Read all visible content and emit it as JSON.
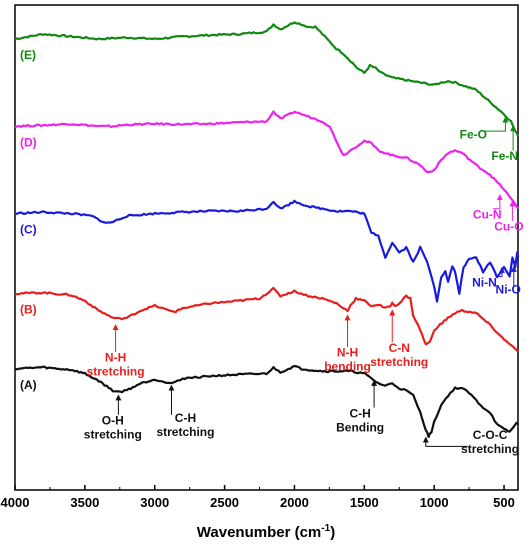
{
  "chart_data": {
    "type": "line",
    "xlabel": "Wavenumber (cm",
    "xlabel_sup": "-1",
    "xlabel_end": ")",
    "ylabel": "",
    "xlim": [
      4000,
      400
    ],
    "x_reversed": true,
    "x_ticks": [
      4000,
      3500,
      3000,
      2500,
      2000,
      1500,
      1000,
      500
    ],
    "x_tick_labels": [
      "4000",
      "3500",
      "3000",
      "2500",
      "2000",
      "1500",
      "1000",
      "500"
    ],
    "ylim": [
      0,
      100
    ],
    "grid": false,
    "series": [
      {
        "name": "(E)",
        "color": "#118811",
        "points": [
          [
            4000,
            93
          ],
          [
            3800,
            94
          ],
          [
            3600,
            93.5
          ],
          [
            3400,
            93
          ],
          [
            3200,
            93.3
          ],
          [
            3000,
            93
          ],
          [
            2800,
            93.5
          ],
          [
            2600,
            93.8
          ],
          [
            2400,
            94
          ],
          [
            2200,
            94.5
          ],
          [
            2150,
            96
          ],
          [
            2100,
            95
          ],
          [
            2000,
            96.5
          ],
          [
            1950,
            96
          ],
          [
            1900,
            95.5
          ],
          [
            1850,
            95.5
          ],
          [
            1800,
            94
          ],
          [
            1750,
            92.5
          ],
          [
            1700,
            91
          ],
          [
            1650,
            90
          ],
          [
            1600,
            88.5
          ],
          [
            1550,
            87
          ],
          [
            1500,
            86
          ],
          [
            1460,
            87.5
          ],
          [
            1420,
            87
          ],
          [
            1380,
            86
          ],
          [
            1300,
            85
          ],
          [
            1200,
            84.5
          ],
          [
            1100,
            84
          ],
          [
            1000,
            83.5
          ],
          [
            950,
            84
          ],
          [
            900,
            84.3
          ],
          [
            850,
            84
          ],
          [
            800,
            83.5
          ],
          [
            700,
            82.5
          ],
          [
            600,
            80
          ],
          [
            500,
            77.5
          ],
          [
            450,
            76
          ],
          [
            420,
            74
          ],
          [
            400,
            73
          ]
        ]
      },
      {
        "name": "(D)",
        "color": "#ee22ee",
        "points": [
          [
            4000,
            75
          ],
          [
            3800,
            75.2
          ],
          [
            3600,
            75.5
          ],
          [
            3400,
            75
          ],
          [
            3300,
            75
          ],
          [
            3200,
            75.3
          ],
          [
            3000,
            75.5
          ],
          [
            2800,
            75.4
          ],
          [
            2600,
            75.5
          ],
          [
            2400,
            75.8
          ],
          [
            2200,
            76
          ],
          [
            2150,
            78
          ],
          [
            2100,
            76.5
          ],
          [
            2000,
            78
          ],
          [
            1950,
            77.5
          ],
          [
            1900,
            77
          ],
          [
            1850,
            76.5
          ],
          [
            1800,
            76
          ],
          [
            1750,
            75
          ],
          [
            1700,
            72
          ],
          [
            1650,
            69
          ],
          [
            1600,
            70
          ],
          [
            1550,
            71
          ],
          [
            1500,
            72
          ],
          [
            1450,
            71.5
          ],
          [
            1400,
            70
          ],
          [
            1300,
            69
          ],
          [
            1200,
            68.5
          ],
          [
            1100,
            67
          ],
          [
            1050,
            65.5
          ],
          [
            1000,
            66
          ],
          [
            950,
            68
          ],
          [
            900,
            69.5
          ],
          [
            850,
            70
          ],
          [
            800,
            69.5
          ],
          [
            700,
            67
          ],
          [
            600,
            65
          ],
          [
            500,
            62
          ],
          [
            450,
            60
          ],
          [
            420,
            59
          ],
          [
            400,
            58
          ]
        ]
      },
      {
        "name": "(C)",
        "color": "#1a1adc",
        "points": [
          [
            4000,
            57
          ],
          [
            3800,
            57.3
          ],
          [
            3600,
            57
          ],
          [
            3450,
            56.5
          ],
          [
            3350,
            55
          ],
          [
            3300,
            55.3
          ],
          [
            3200,
            56.5
          ],
          [
            3000,
            57
          ],
          [
            2800,
            57.3
          ],
          [
            2600,
            57.5
          ],
          [
            2400,
            57.5
          ],
          [
            2200,
            58
          ],
          [
            2150,
            59.5
          ],
          [
            2100,
            58
          ],
          [
            2000,
            59.5
          ],
          [
            1950,
            59
          ],
          [
            1900,
            58.5
          ],
          [
            1800,
            58
          ],
          [
            1700,
            57.5
          ],
          [
            1600,
            57.5
          ],
          [
            1500,
            57
          ],
          [
            1450,
            53
          ],
          [
            1400,
            52.5
          ],
          [
            1350,
            48
          ],
          [
            1300,
            51
          ],
          [
            1250,
            49
          ],
          [
            1200,
            50
          ],
          [
            1150,
            47
          ],
          [
            1100,
            50
          ],
          [
            1050,
            47
          ],
          [
            1000,
            42
          ],
          [
            980,
            39
          ],
          [
            950,
            44
          ],
          [
            920,
            45
          ],
          [
            900,
            43
          ],
          [
            870,
            46
          ],
          [
            850,
            45
          ],
          [
            820,
            40.5
          ],
          [
            790,
            46
          ],
          [
            750,
            47.5
          ],
          [
            700,
            48
          ],
          [
            650,
            45
          ],
          [
            600,
            47
          ],
          [
            550,
            44
          ],
          [
            500,
            46
          ],
          [
            460,
            44
          ],
          [
            440,
            48
          ],
          [
            420,
            46
          ],
          [
            405,
            49
          ],
          [
            400,
            48
          ]
        ]
      },
      {
        "name": "(B)",
        "color": "#e81e1e",
        "points": [
          [
            4000,
            40.5
          ],
          [
            3800,
            40.7
          ],
          [
            3600,
            40.2
          ],
          [
            3500,
            39
          ],
          [
            3400,
            37
          ],
          [
            3300,
            35.5
          ],
          [
            3250,
            35.3
          ],
          [
            3200,
            35.5
          ],
          [
            3100,
            37
          ],
          [
            3000,
            38
          ],
          [
            2950,
            37.5
          ],
          [
            2900,
            37
          ],
          [
            2850,
            36.8
          ],
          [
            2800,
            37.5
          ],
          [
            2600,
            38.5
          ],
          [
            2400,
            39
          ],
          [
            2250,
            39.5
          ],
          [
            2150,
            41.5
          ],
          [
            2100,
            40
          ],
          [
            2000,
            41
          ],
          [
            1950,
            40.5
          ],
          [
            1900,
            40
          ],
          [
            1800,
            39.5
          ],
          [
            1700,
            38.5
          ],
          [
            1650,
            37.5
          ],
          [
            1620,
            37
          ],
          [
            1600,
            38
          ],
          [
            1560,
            39.5
          ],
          [
            1500,
            39
          ],
          [
            1450,
            38
          ],
          [
            1400,
            38.2
          ],
          [
            1350,
            37.5
          ],
          [
            1320,
            37.8
          ],
          [
            1300,
            38.5
          ],
          [
            1280,
            38
          ],
          [
            1250,
            38.5
          ],
          [
            1200,
            40
          ],
          [
            1170,
            39.5
          ],
          [
            1150,
            36
          ],
          [
            1100,
            33
          ],
          [
            1060,
            30
          ],
          [
            1030,
            30.5
          ],
          [
            1000,
            33
          ],
          [
            900,
            35.5
          ],
          [
            850,
            36.5
          ],
          [
            800,
            37
          ],
          [
            700,
            36.5
          ],
          [
            600,
            34
          ],
          [
            500,
            31
          ],
          [
            450,
            30
          ],
          [
            420,
            29
          ],
          [
            400,
            28.5
          ]
        ]
      },
      {
        "name": "(A)",
        "color": "#111111",
        "points": [
          [
            4000,
            25
          ],
          [
            3800,
            25.3
          ],
          [
            3700,
            25
          ],
          [
            3600,
            24.8
          ],
          [
            3500,
            24
          ],
          [
            3400,
            22.5
          ],
          [
            3300,
            20.5
          ],
          [
            3250,
            20.2
          ],
          [
            3200,
            20.6
          ],
          [
            3100,
            22
          ],
          [
            3000,
            22.8
          ],
          [
            2950,
            22.5
          ],
          [
            2900,
            22
          ],
          [
            2850,
            22.2
          ],
          [
            2800,
            23
          ],
          [
            2600,
            23.5
          ],
          [
            2400,
            23.8
          ],
          [
            2200,
            24
          ],
          [
            2150,
            25.2
          ],
          [
            2100,
            24.3
          ],
          [
            2000,
            25.5
          ],
          [
            1950,
            25
          ],
          [
            1900,
            24.8
          ],
          [
            1800,
            24.5
          ],
          [
            1700,
            24.5
          ],
          [
            1600,
            24.5
          ],
          [
            1500,
            24
          ],
          [
            1450,
            23
          ],
          [
            1400,
            22
          ],
          [
            1350,
            21.5
          ],
          [
            1300,
            22
          ],
          [
            1250,
            21
          ],
          [
            1200,
            20.5
          ],
          [
            1150,
            19.5
          ],
          [
            1100,
            16
          ],
          [
            1060,
            12.5
          ],
          [
            1040,
            11
          ],
          [
            1020,
            12
          ],
          [
            1000,
            14
          ],
          [
            950,
            17.5
          ],
          [
            900,
            19.5
          ],
          [
            850,
            21
          ],
          [
            800,
            21
          ],
          [
            750,
            20
          ],
          [
            700,
            18.5
          ],
          [
            650,
            17
          ],
          [
            600,
            16
          ],
          [
            550,
            13.5
          ],
          [
            500,
            12.5
          ],
          [
            460,
            12
          ],
          [
            430,
            13
          ],
          [
            410,
            14
          ],
          [
            400,
            13.5
          ]
        ]
      }
    ],
    "annotations": [
      {
        "series": "(B)",
        "lines": [
          "N-H",
          "stretching"
        ],
        "arrow_x": 3280,
        "arrow_y1": 34,
        "arrow_y2": 28.5,
        "text_x": 3280,
        "text_y": 26.5,
        "color": "#e81e1e"
      },
      {
        "series": "(B)",
        "lines": [
          "N-H",
          "bending"
        ],
        "arrow_x": 1620,
        "arrow_y1": 36,
        "arrow_y2": 29.5,
        "text_x": 1620,
        "text_y": 27.5,
        "color": "#e81e1e"
      },
      {
        "series": "(B)",
        "lines": [
          "C-N",
          "stretching"
        ],
        "arrow_x": 1300,
        "arrow_y1": 37,
        "arrow_y2": 30.5,
        "text_x": 1250,
        "text_y": 28.5,
        "color": "#e81e1e"
      },
      {
        "series": "(A)",
        "lines": [
          "O-H",
          "stretching"
        ],
        "arrow_x": 3260,
        "arrow_y1": 19.5,
        "arrow_y2": 15.5,
        "text_x": 3300,
        "text_y": 13.5,
        "color": "#111111"
      },
      {
        "series": "(A)",
        "lines": [
          "C-H",
          "stretching"
        ],
        "arrow_x": 2880,
        "arrow_y1": 21.5,
        "arrow_y2": 15.5,
        "text_x": 2780,
        "text_y": 14,
        "color": "#111111"
      },
      {
        "series": "(A)",
        "lines": [
          "C-H",
          "Bending"
        ],
        "arrow_x": 1430,
        "arrow_y1": 22.5,
        "arrow_y2": 17,
        "text_x": 1530,
        "text_y": 15,
        "color": "#111111"
      },
      {
        "series": "(A)",
        "lines": [
          "C-O-C",
          "stretching"
        ],
        "arrow_x": 1060,
        "arrow_y1": 11,
        "arrow_y2": 9,
        "text_x": 600,
        "text_y": 10.5,
        "color": "#111111",
        "type": "elbow",
        "elbow_x": 760
      },
      {
        "series": "(E)",
        "lines": [
          "Fe-O"
        ],
        "arrow_x": 490,
        "arrow_y1": 77,
        "arrow_y2": 74,
        "text_x": 720,
        "text_y": 72.5,
        "color": "#118811",
        "type": "elbow",
        "elbow_x": 640
      },
      {
        "series": "(E)",
        "lines": [
          "Fe-N"
        ],
        "arrow_x": 435,
        "arrow_y1": 75,
        "arrow_y2": 70,
        "text_x": 495,
        "text_y": 68,
        "color": "#118811"
      },
      {
        "series": "(D)",
        "lines": [
          "Cu-N"
        ],
        "arrow_x": 530,
        "arrow_y1": 61,
        "arrow_y2": 58,
        "text_x": 620,
        "text_y": 56,
        "color": "#ee22ee",
        "type": "elbow",
        "elbow_x": 580
      },
      {
        "series": "(D)",
        "lines": [
          "Cu-O"
        ],
        "arrow_x": 440,
        "arrow_y1": 59.5,
        "arrow_y2": 55.5,
        "text_x": 465,
        "text_y": 53.5,
        "color": "#ee22ee"
      },
      {
        "series": "(C)",
        "lines": [
          "Ni-N"
        ],
        "arrow_x": 515,
        "arrow_y1": 46,
        "arrow_y2": 44,
        "text_x": 640,
        "text_y": 42,
        "color": "#1a1adc",
        "type": "elbow",
        "elbow_x": 560
      },
      {
        "series": "(C)",
        "lines": [
          "Ni-O"
        ],
        "arrow_x": 430,
        "arrow_y1": 46,
        "arrow_y2": 42,
        "text_x": 470,
        "text_y": 40.5,
        "color": "#1a1adc"
      }
    ]
  }
}
